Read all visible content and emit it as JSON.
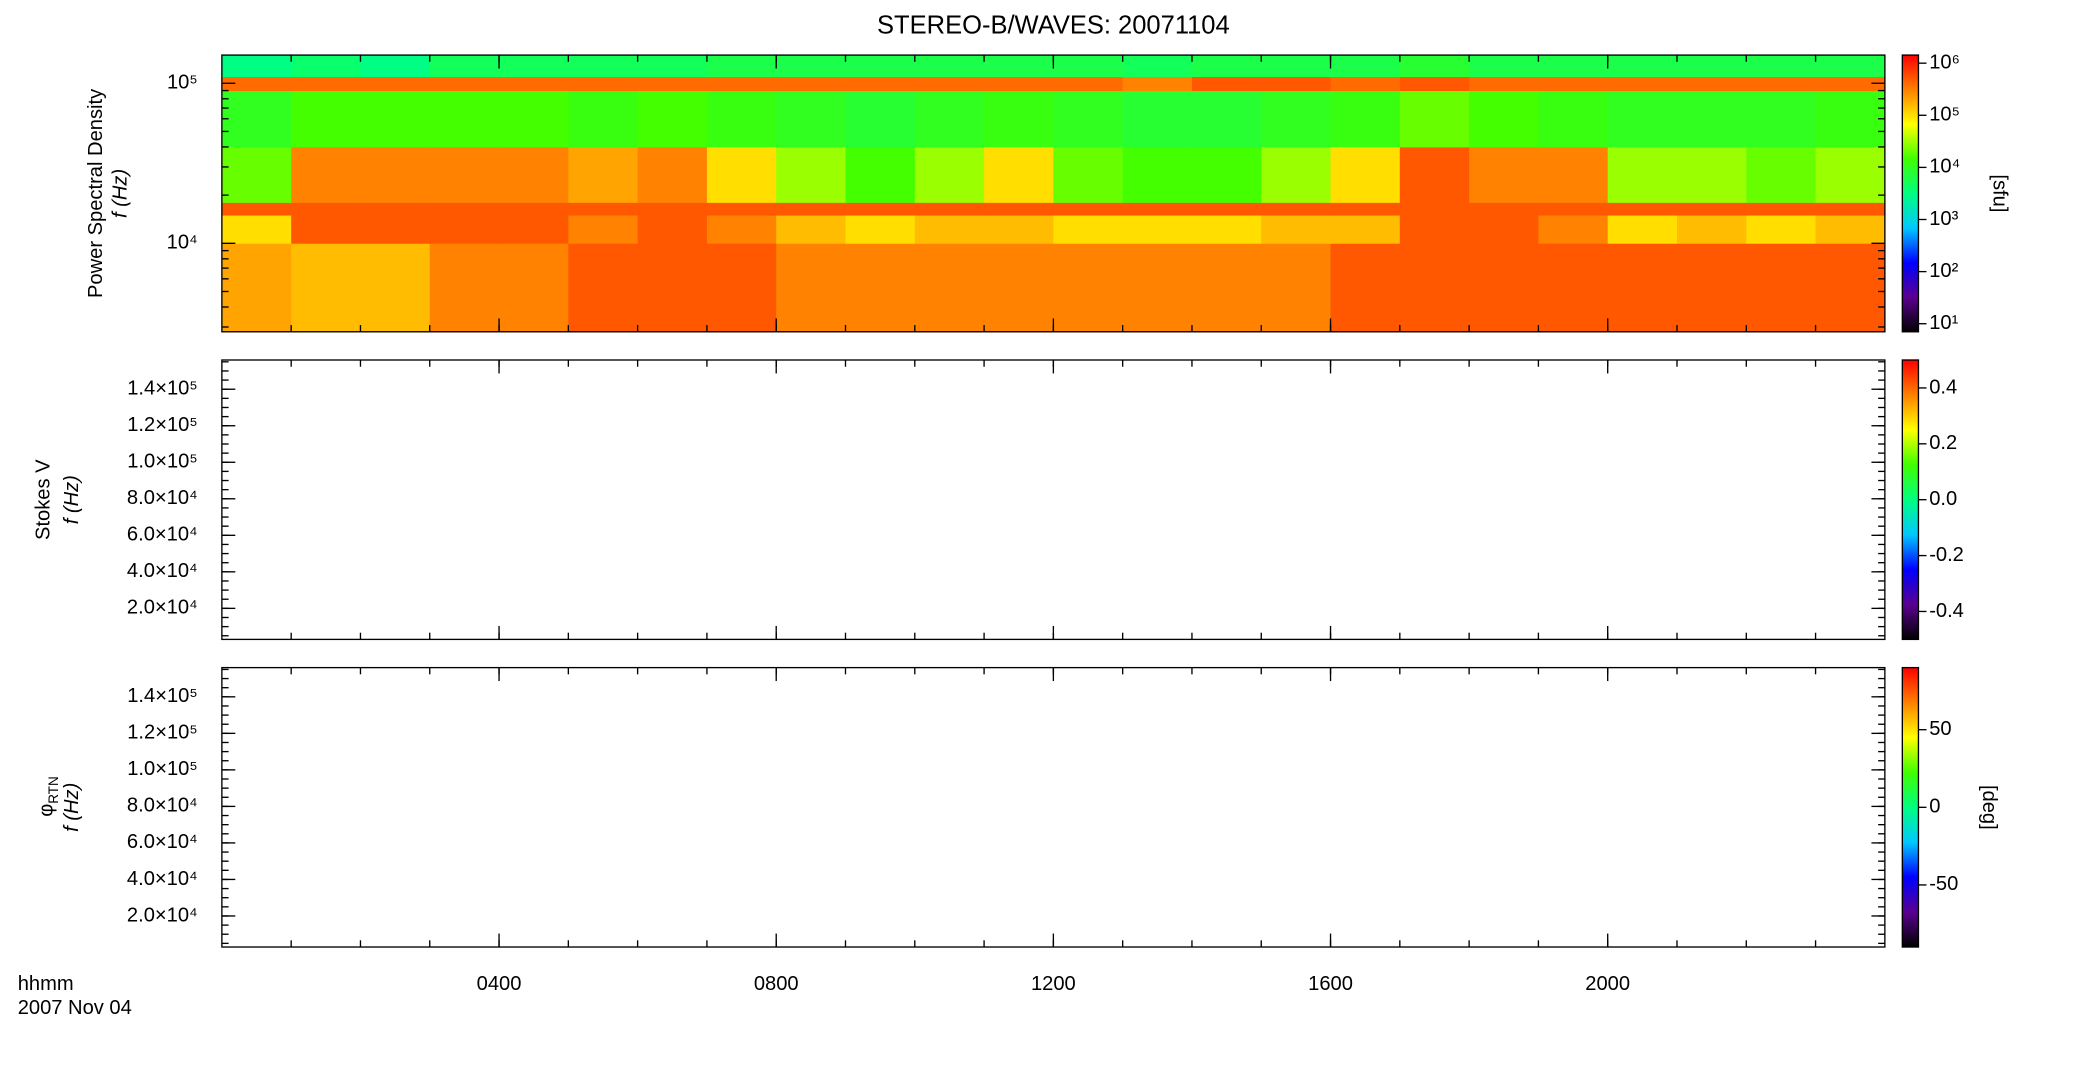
{
  "title": "STEREO-B/WAVES: 20071104",
  "x_axis": {
    "label": "hhmm",
    "date": "2007 Nov 04",
    "xlim": [
      0,
      24
    ],
    "xticks": [
      {
        "value": 4,
        "label": "0400"
      },
      {
        "value": 8,
        "label": "0800"
      },
      {
        "value": 12,
        "label": "1200"
      },
      {
        "value": 16,
        "label": "1600"
      },
      {
        "value": 20,
        "label": "2000"
      }
    ]
  },
  "chart_data": [
    {
      "type": "heatmap",
      "ylabel_top": "Power Spectral Density",
      "ylabel": "f (Hz)",
      "log_y": true,
      "ylim": [
        2800,
        150000
      ],
      "yticks": [
        {
          "value": 10000,
          "label": "10⁴"
        },
        {
          "value": 100000,
          "label": "10⁵"
        }
      ],
      "x_edges": [
        0,
        1,
        2,
        3,
        4,
        5,
        6,
        7,
        8,
        9,
        10,
        11,
        12,
        13,
        14,
        15,
        16,
        17,
        18,
        19,
        20,
        21,
        22,
        23,
        24
      ],
      "y_edges": [
        2800,
        10000,
        15000,
        18000,
        40000,
        90000,
        110000,
        150000
      ],
      "z": [
        [
          200000,
          150000,
          150000,
          300000,
          300000,
          500000,
          500000,
          500000,
          300000,
          300000,
          300000,
          300000,
          300000,
          300000,
          300000,
          300000,
          500000,
          500000,
          500000,
          500000,
          500000,
          500000,
          500000,
          500000
        ],
        [
          100000,
          500000,
          500000,
          500000,
          500000,
          300000,
          500000,
          300000,
          150000,
          100000,
          150000,
          150000,
          100000,
          100000,
          100000,
          150000,
          150000,
          500000,
          500000,
          300000,
          100000,
          150000,
          100000,
          150000
        ],
        [
          500000,
          500000,
          500000,
          500000,
          500000,
          500000,
          500000,
          500000,
          500000,
          500000,
          500000,
          500000,
          500000,
          500000,
          500000,
          500000,
          500000,
          500000,
          500000,
          500000,
          500000,
          500000,
          500000,
          500000
        ],
        [
          20000,
          300000,
          300000,
          300000,
          300000,
          200000,
          300000,
          100000,
          30000,
          15000,
          30000,
          100000,
          20000,
          15000,
          15000,
          30000,
          100000,
          500000,
          300000,
          300000,
          30000,
          30000,
          20000,
          30000
        ],
        [
          10000,
          15000,
          15000,
          15000,
          15000,
          12000,
          15000,
          12000,
          10000,
          8000,
          10000,
          12000,
          10000,
          8000,
          8000,
          10000,
          12000,
          20000,
          15000,
          12000,
          10000,
          10000,
          10000,
          12000
        ],
        [
          400000,
          400000,
          400000,
          400000,
          400000,
          400000,
          400000,
          400000,
          400000,
          400000,
          400000,
          400000,
          400000,
          300000,
          500000,
          500000,
          400000,
          500000,
          400000,
          400000,
          400000,
          400000,
          400000,
          400000
        ],
        [
          3000,
          4000,
          3000,
          5000,
          5000,
          5000,
          5000,
          6000,
          6000,
          6000,
          6000,
          6000,
          6000,
          5000,
          6000,
          6000,
          6000,
          8000,
          6000,
          6000,
          6000,
          6000,
          6000,
          6000
        ]
      ],
      "colorbar": {
        "label": "[sfu]",
        "log": true,
        "zlim": [
          7,
          1430000
        ],
        "zticks": [
          {
            "value": 10,
            "label": "10¹"
          },
          {
            "value": 100,
            "label": "10²"
          },
          {
            "value": 1000,
            "label": "10³"
          },
          {
            "value": 10000,
            "label": "10⁴"
          },
          {
            "value": 100000,
            "label": "10⁵"
          },
          {
            "value": 1000000,
            "label": "10⁶"
          }
        ]
      },
      "colors": [
        "#000000",
        "#5a0090",
        "#0000ff",
        "#00c8ff",
        "#00ff80",
        "#40ff00",
        "#ffff00",
        "#ff8000",
        "#ff0000"
      ]
    },
    {
      "type": "heatmap",
      "ylabel_top": "Stokes V",
      "ylabel": "f (Hz)",
      "log_y": false,
      "ylim": [
        3000,
        156000
      ],
      "yticks": [
        {
          "value": 20000,
          "label": "2.0×10⁴"
        },
        {
          "value": 40000,
          "label": "4.0×10⁴"
        },
        {
          "value": 60000,
          "label": "6.0×10⁴"
        },
        {
          "value": 80000,
          "label": "8.0×10⁴"
        },
        {
          "value": 100000,
          "label": "1.0×10⁵"
        },
        {
          "value": 120000,
          "label": "1.2×10⁵"
        },
        {
          "value": 140000,
          "label": "1.4×10⁵"
        }
      ],
      "colorbar": {
        "log": false,
        "zlim": [
          -0.5,
          0.5
        ],
        "zticks": [
          -0.4,
          -0.2,
          {
            "value": 0,
            "label": "0.0"
          },
          0.2,
          0.4
        ]
      },
      "colors": [
        "#000000",
        "#5a0090",
        "#0000ff",
        "#00c8ff",
        "#00ff80",
        "#40ff00",
        "#ffff00",
        "#ff8000",
        "#ff0000"
      ]
    },
    {
      "type": "heatmap",
      "ylabel_top": "φ",
      "ylabel_top_sub": "RTN",
      "ylabel": "f (Hz)",
      "log_y": false,
      "ylim": [
        3000,
        156000
      ],
      "yticks": [
        {
          "value": 20000,
          "label": "2.0×10⁴"
        },
        {
          "value": 40000,
          "label": "4.0×10⁴"
        },
        {
          "value": 60000,
          "label": "6.0×10⁴"
        },
        {
          "value": 80000,
          "label": "8.0×10⁴"
        },
        {
          "value": 100000,
          "label": "1.0×10⁵"
        },
        {
          "value": 120000,
          "label": "1.2×10⁵"
        },
        {
          "value": 140000,
          "label": "1.4×10⁵"
        }
      ],
      "colorbar": {
        "label": "[deg]",
        "log": false,
        "zlim": [
          -90,
          90
        ],
        "zticks": [
          -50,
          0,
          50
        ]
      },
      "colors": [
        "#000000",
        "#5a0090",
        "#0000ff",
        "#00c8ff",
        "#00ff80",
        "#40ff00",
        "#ffff00",
        "#ff8000",
        "#ff0000"
      ]
    }
  ]
}
